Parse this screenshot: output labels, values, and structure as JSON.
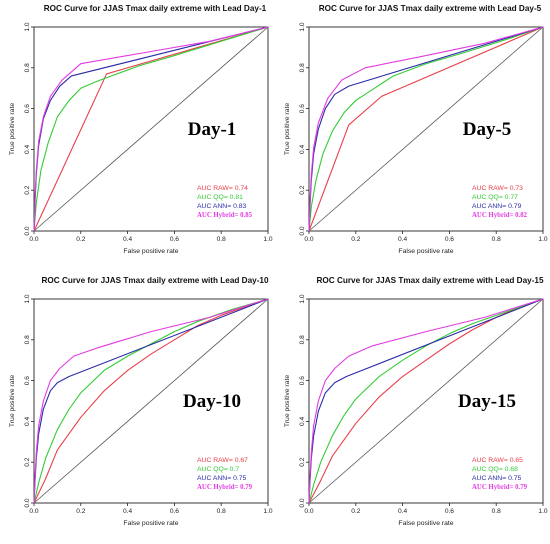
{
  "chart_data": [
    {
      "type": "line",
      "title": "ROC Curve for JJAS Tmax daily extreme with Lead Day-1",
      "xlabel": "False positive rate",
      "ylabel": "True positive rate",
      "xlim": [
        0,
        1
      ],
      "ylim": [
        0,
        1
      ],
      "xticks": [
        "0.0",
        "0.2",
        "0.4",
        "0.6",
        "0.8",
        "1.0"
      ],
      "yticks": [
        "0.0",
        "0.2",
        "0.4",
        "0.6",
        "0.8",
        "1.0"
      ],
      "grid": false,
      "legend_position": "bottom-right",
      "annotation": "Day-1",
      "series": [
        {
          "name": "RAW",
          "color": "#e8414a",
          "auc_label": "AUC RAW= 0.74",
          "x": [
            0,
            0.31,
            1
          ],
          "y": [
            0,
            0.77,
            1
          ]
        },
        {
          "name": "QQ",
          "color": "#33cc33",
          "auc_label": "AUC QQ= 0.81",
          "x": [
            0,
            0.01,
            0.03,
            0.06,
            0.1,
            0.15,
            0.2,
            0.26,
            0.33,
            0.45,
            0.6,
            0.8,
            1
          ],
          "y": [
            0,
            0.14,
            0.3,
            0.43,
            0.56,
            0.64,
            0.7,
            0.73,
            0.76,
            0.81,
            0.86,
            0.93,
            1
          ]
        },
        {
          "name": "ANN",
          "color": "#2b2ba8",
          "auc_label": "AUC ANN= 0.83",
          "x": [
            0,
            0.005,
            0.01,
            0.02,
            0.04,
            0.07,
            0.11,
            0.16,
            1
          ],
          "y": [
            0,
            0.16,
            0.28,
            0.42,
            0.55,
            0.64,
            0.71,
            0.76,
            1
          ]
        },
        {
          "name": "Hybrid",
          "color": "#e23be2",
          "auc_label": "AUC Hybrid= 0.85",
          "x": [
            0,
            0.005,
            0.01,
            0.02,
            0.04,
            0.07,
            0.12,
            0.2,
            0.5,
            0.75,
            1
          ],
          "y": [
            0,
            0.18,
            0.3,
            0.44,
            0.56,
            0.66,
            0.74,
            0.82,
            0.88,
            0.93,
            1
          ]
        }
      ]
    },
    {
      "type": "line",
      "title": "ROC Curve for JJAS Tmax daily extreme with Lead Day-5",
      "xlabel": "False positive rate",
      "ylabel": "True positive rate",
      "xlim": [
        0,
        1
      ],
      "ylim": [
        0,
        1
      ],
      "xticks": [
        "0.0",
        "0.2",
        "0.4",
        "0.6",
        "0.8",
        "1.0"
      ],
      "yticks": [
        "0.0",
        "0.2",
        "0.4",
        "0.6",
        "0.8",
        "1.0"
      ],
      "grid": false,
      "legend_position": "bottom-right",
      "annotation": "Day-5",
      "series": [
        {
          "name": "RAW",
          "color": "#e8414a",
          "auc_label": "AUC RAW= 0.73",
          "x": [
            0,
            0.17,
            0.31,
            1
          ],
          "y": [
            0,
            0.52,
            0.66,
            1
          ]
        },
        {
          "name": "QQ",
          "color": "#33cc33",
          "auc_label": "AUC QQ= 0.77",
          "x": [
            0,
            0.01,
            0.03,
            0.06,
            0.1,
            0.15,
            0.2,
            0.28,
            0.36,
            0.5,
            0.65,
            0.82,
            1
          ],
          "y": [
            0,
            0.12,
            0.25,
            0.38,
            0.49,
            0.58,
            0.64,
            0.7,
            0.76,
            0.82,
            0.87,
            0.93,
            1
          ]
        },
        {
          "name": "ANN",
          "color": "#2b2ba8",
          "auc_label": "AUC ANN= 0.79",
          "x": [
            0,
            0.005,
            0.01,
            0.02,
            0.04,
            0.07,
            0.11,
            0.17,
            1
          ],
          "y": [
            0,
            0.14,
            0.25,
            0.38,
            0.5,
            0.6,
            0.67,
            0.71,
            1
          ]
        },
        {
          "name": "Hybrid",
          "color": "#e23be2",
          "auc_label": "AUC Hybrid= 0.82",
          "x": [
            0,
            0.005,
            0.01,
            0.02,
            0.04,
            0.08,
            0.14,
            0.24,
            0.5,
            0.75,
            1
          ],
          "y": [
            0,
            0.16,
            0.28,
            0.41,
            0.53,
            0.65,
            0.74,
            0.8,
            0.86,
            0.92,
            1
          ]
        }
      ]
    },
    {
      "type": "line",
      "title": "ROC Curve for JJAS Tmax daily extreme with Lead Day-10",
      "xlabel": "False positive rate",
      "ylabel": "True positive rate",
      "xlim": [
        0,
        1
      ],
      "ylim": [
        0,
        1
      ],
      "xticks": [
        "0.0",
        "0.2",
        "0.4",
        "0.6",
        "0.8",
        "1.0"
      ],
      "yticks": [
        "0.0",
        "0.2",
        "0.4",
        "0.6",
        "0.8",
        "1.0"
      ],
      "grid": false,
      "legend_position": "bottom-right",
      "annotation": "Day-10",
      "series": [
        {
          "name": "RAW",
          "color": "#e8414a",
          "auc_label": "AUC RAW= 0.67",
          "x": [
            0,
            0.05,
            0.1,
            0.2,
            0.3,
            0.4,
            0.5,
            0.6,
            0.7,
            0.8,
            0.9,
            1
          ],
          "y": [
            0,
            0.12,
            0.26,
            0.42,
            0.55,
            0.65,
            0.73,
            0.8,
            0.87,
            0.92,
            0.96,
            1
          ]
        },
        {
          "name": "QQ",
          "color": "#33cc33",
          "auc_label": "AUC QQ= 0.7",
          "x": [
            0,
            0.02,
            0.05,
            0.1,
            0.15,
            0.2,
            0.3,
            0.4,
            0.5,
            0.6,
            0.7,
            0.85,
            1
          ],
          "y": [
            0,
            0.1,
            0.22,
            0.36,
            0.46,
            0.54,
            0.65,
            0.72,
            0.78,
            0.84,
            0.89,
            0.95,
            1
          ]
        },
        {
          "name": "ANN",
          "color": "#2b2ba8",
          "auc_label": "AUC ANN= 0.75",
          "x": [
            0,
            0.005,
            0.01,
            0.02,
            0.04,
            0.07,
            0.1,
            0.15,
            1
          ],
          "y": [
            0,
            0.12,
            0.22,
            0.34,
            0.46,
            0.55,
            0.59,
            0.62,
            1
          ]
        },
        {
          "name": "Hybrid",
          "color": "#e23be2",
          "auc_label": "AUC Hybrid= 0.79",
          "x": [
            0,
            0.005,
            0.01,
            0.02,
            0.04,
            0.07,
            0.11,
            0.17,
            0.27,
            0.5,
            0.75,
            1
          ],
          "y": [
            0,
            0.14,
            0.25,
            0.38,
            0.5,
            0.6,
            0.66,
            0.72,
            0.76,
            0.84,
            0.91,
            1
          ]
        }
      ]
    },
    {
      "type": "line",
      "title": "ROC Curve for JJAS Tmax daily extreme with Lead Day-15",
      "xlabel": "False positive rate",
      "ylabel": "True positive rate",
      "xlim": [
        0,
        1
      ],
      "ylim": [
        0,
        1
      ],
      "xticks": [
        "0.0",
        "0.2",
        "0.4",
        "0.6",
        "0.8",
        "1.0"
      ],
      "yticks": [
        "0.0",
        "0.2",
        "0.4",
        "0.6",
        "0.8",
        "1.0"
      ],
      "grid": false,
      "legend_position": "bottom-right",
      "annotation": "Day-15",
      "series": [
        {
          "name": "RAW",
          "color": "#e8414a",
          "auc_label": "AUC RAW= 0.65",
          "x": [
            0,
            0.05,
            0.1,
            0.2,
            0.3,
            0.4,
            0.5,
            0.6,
            0.7,
            0.8,
            0.9,
            1
          ],
          "y": [
            0,
            0.11,
            0.23,
            0.39,
            0.52,
            0.62,
            0.7,
            0.78,
            0.85,
            0.91,
            0.96,
            1
          ]
        },
        {
          "name": "QQ",
          "color": "#33cc33",
          "auc_label": "AUC QQ= 0.68",
          "x": [
            0,
            0.02,
            0.05,
            0.1,
            0.15,
            0.2,
            0.3,
            0.4,
            0.5,
            0.6,
            0.7,
            0.85,
            1
          ],
          "y": [
            0,
            0.09,
            0.2,
            0.33,
            0.43,
            0.51,
            0.62,
            0.7,
            0.77,
            0.83,
            0.88,
            0.94,
            1
          ]
        },
        {
          "name": "ANN",
          "color": "#2b2ba8",
          "auc_label": "AUC ANN= 0.75",
          "x": [
            0,
            0.005,
            0.01,
            0.02,
            0.04,
            0.07,
            0.11,
            0.16,
            1
          ],
          "y": [
            0,
            0.12,
            0.22,
            0.33,
            0.45,
            0.54,
            0.59,
            0.62,
            1
          ]
        },
        {
          "name": "Hybrid",
          "color": "#e23be2",
          "auc_label": "AUC Hybrid= 0.79",
          "x": [
            0,
            0.005,
            0.01,
            0.02,
            0.04,
            0.07,
            0.11,
            0.17,
            0.27,
            0.5,
            0.75,
            1
          ],
          "y": [
            0,
            0.14,
            0.25,
            0.38,
            0.5,
            0.6,
            0.66,
            0.72,
            0.77,
            0.84,
            0.91,
            1
          ]
        }
      ]
    }
  ]
}
